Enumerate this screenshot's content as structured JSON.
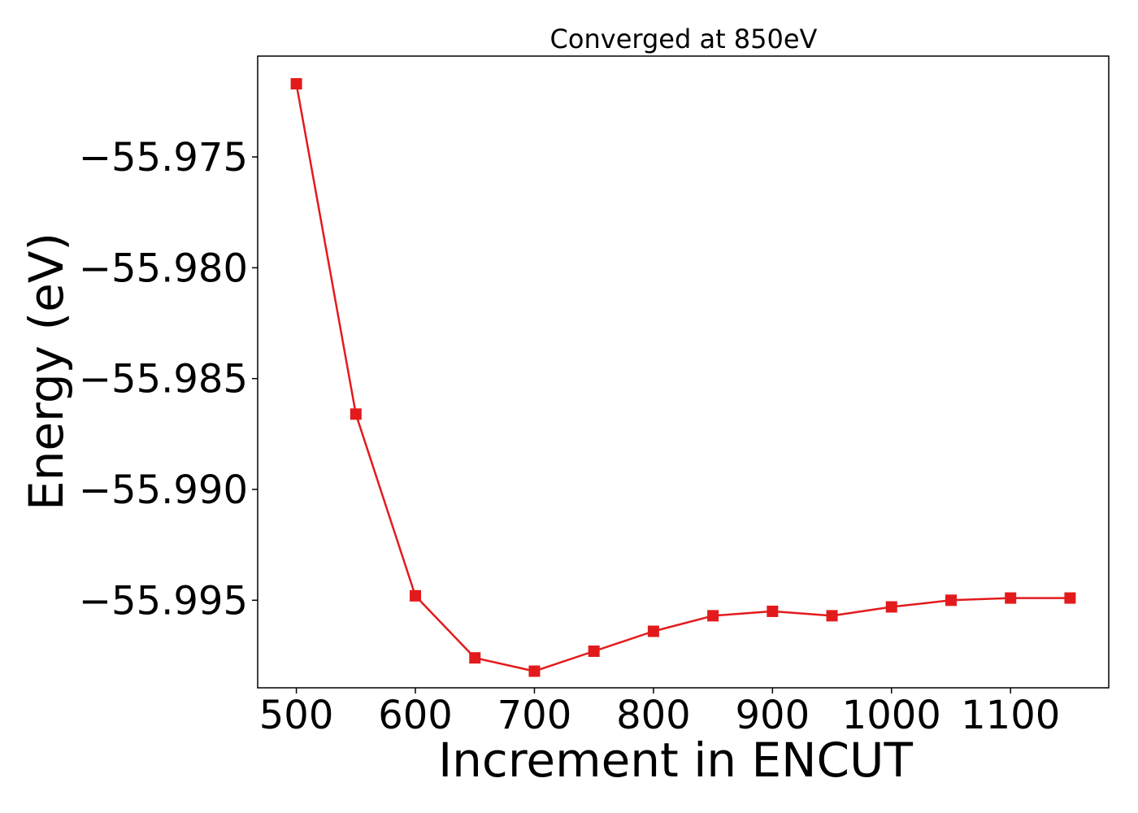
{
  "chart_data": {
    "type": "line",
    "title": "Converged at 850eV",
    "xlabel": "Increment in ENCUT",
    "ylabel": "Energy (eV)",
    "x": [
      500,
      550,
      600,
      650,
      700,
      750,
      800,
      850,
      900,
      950,
      1000,
      1050,
      1100,
      1150
    ],
    "series": [
      {
        "values": [
          -55.9717,
          -55.9866,
          -55.9948,
          -55.9976,
          -55.9982,
          -55.9973,
          -55.9964,
          -55.9957,
          -55.9955,
          -55.9957,
          -55.9953,
          -55.995,
          -55.9949,
          -55.9949
        ],
        "color": "#e31a1c",
        "marker": "square"
      }
    ],
    "xticks": [
      500,
      600,
      700,
      800,
      900,
      1000,
      1100
    ],
    "xtick_labels": [
      "500",
      "600",
      "700",
      "800",
      "900",
      "1000",
      "1100"
    ],
    "yticks": [
      -55.975,
      -55.98,
      -55.985,
      -55.99,
      -55.995
    ],
    "ytick_labels": [
      "−55.975",
      "−55.980",
      "−55.985",
      "−55.990",
      "−55.995"
    ],
    "xlim": [
      467.5,
      1182.5
    ],
    "ylim": [
      -55.99895,
      -55.97045
    ],
    "grid": false,
    "legend": "none"
  }
}
